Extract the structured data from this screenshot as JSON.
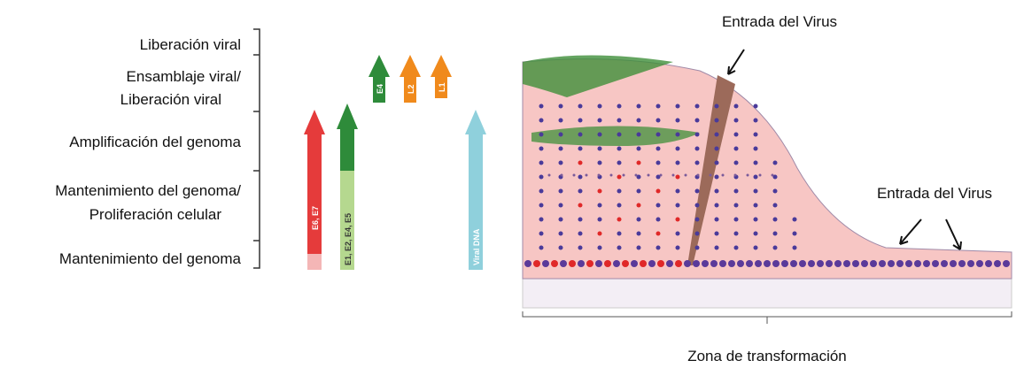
{
  "stage_labels": [
    "Liberación viral",
    "Ensamblaje viral/",
    "Liberación viral",
    "Amplificación del genoma",
    "Mantenimiento del genoma/",
    "Proliferación celular",
    "Mantenimiento del genoma"
  ],
  "gene_arrows": [
    {
      "label": "E6, E7"
    },
    {
      "label": "E1, E2, E4, E5"
    },
    {
      "label": "E4"
    },
    {
      "label": "L2"
    },
    {
      "label": "L1"
    },
    {
      "label": "Viral DNA"
    }
  ],
  "virus_entry_labels": [
    "Entrada del Virus",
    "Entrada del Virus"
  ],
  "zone_label": "Zona de transformación"
}
